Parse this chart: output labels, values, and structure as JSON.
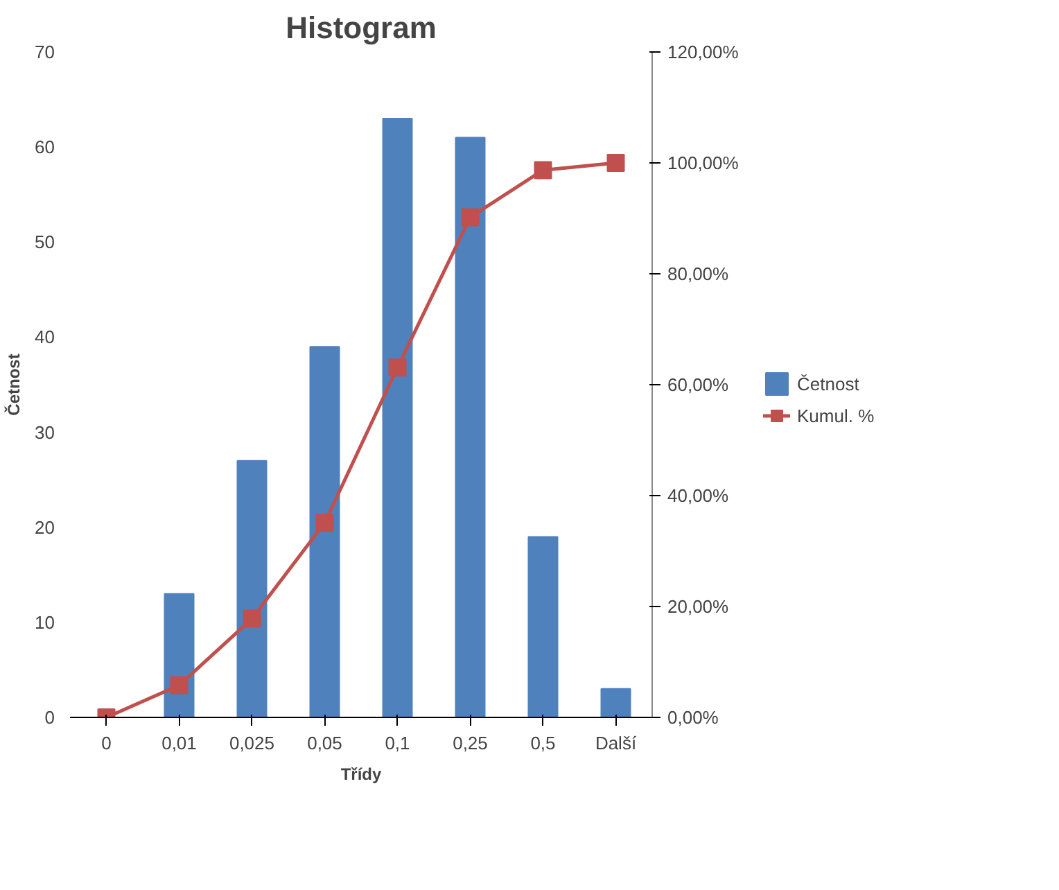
{
  "chart_data": {
    "type": "bar",
    "title": "Histogram",
    "xlabel": "Třídy",
    "ylabel": "Četnost",
    "categories": [
      "0",
      "0,01",
      "0,025",
      "0,05",
      "0,1",
      "0,25",
      "0,5",
      "Další"
    ],
    "series": [
      {
        "name": "Četnost",
        "color": "#4f81bd",
        "values": [
          0,
          13,
          27,
          39,
          63,
          61,
          19,
          3
        ]
      },
      {
        "name": "Kumul. %",
        "type": "line",
        "axis": "y2",
        "color": "#c0504d",
        "marker": "square",
        "values": [
          0,
          5.8,
          17.8,
          35.1,
          63.1,
          90.2,
          98.7,
          100
        ]
      }
    ],
    "ylim": [
      0,
      70
    ],
    "yticks": [
      0,
      10,
      20,
      30,
      40,
      50,
      60,
      70
    ],
    "y2lim": [
      0,
      120
    ],
    "y2ticks": [
      {
        "value": 0,
        "label": "0,00%"
      },
      {
        "value": 20,
        "label": "20,00%"
      },
      {
        "value": 40,
        "label": "40,00%"
      },
      {
        "value": 60,
        "label": "60,00%"
      },
      {
        "value": 80,
        "label": "80,00%"
      },
      {
        "value": 100,
        "label": "100,00%"
      },
      {
        "value": 120,
        "label": "120,00%"
      }
    ],
    "grid": false,
    "legend": "right"
  }
}
